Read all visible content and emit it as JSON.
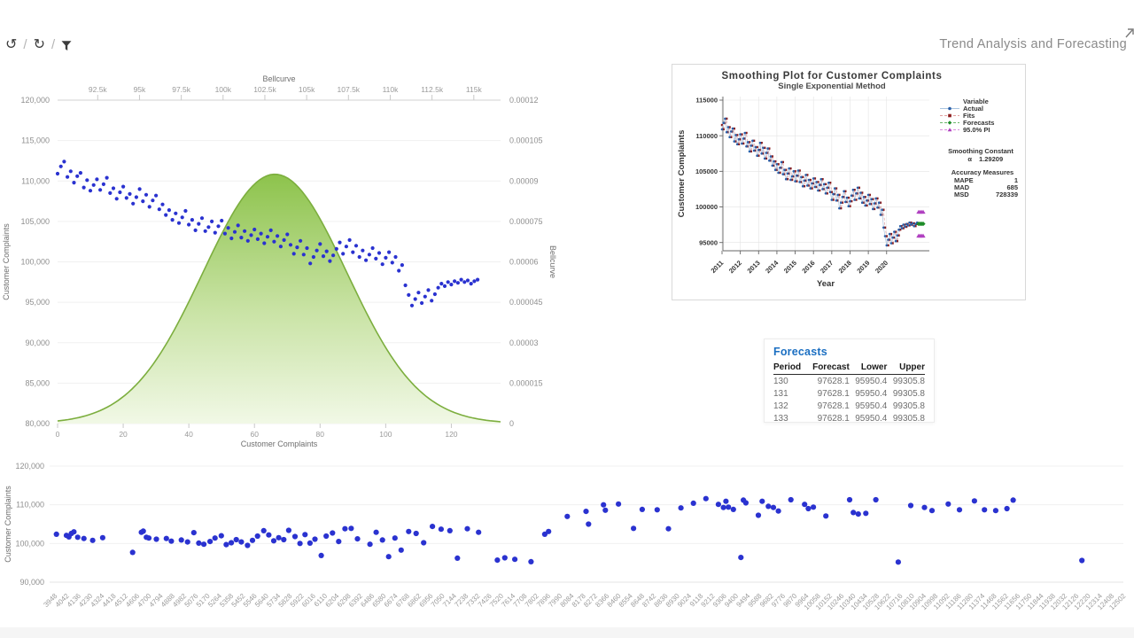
{
  "toolbar": {
    "icons": [
      {
        "name": "undo-history-icon",
        "glyph": "↺"
      },
      {
        "name": "refresh-icon",
        "glyph": "↻"
      },
      {
        "name": "filter-icon",
        "glyph": "funnel"
      }
    ],
    "separator": "/",
    "title": "Trend Analysis and Forecasting"
  },
  "colors": {
    "dot_blue": "#2a32d0",
    "bell_top": "#8dc34c",
    "bell_mid": "#c9e3a5",
    "bell_bottom": "#f1f8e6",
    "bell_stroke": "#7cae3e",
    "grid": "#f0f0f0",
    "grid_dark": "#e0e0e0",
    "axis_text": "#9a9a9a",
    "axis_title": "#6e6e6e",
    "actual_marker": "#2a5fa8",
    "actual_line": "#a8c4e0",
    "fits_marker": "#8c1c1c",
    "fits_line": "#e0a0a0",
    "forecast_marker": "#1e8c28",
    "forecast_line": "#6cb86c",
    "pi_marker": "#b040c0",
    "pi_line": "#d98ade",
    "minitab_text": "#3a3a3a"
  },
  "forecasts": {
    "title": "Forecasts",
    "columns": [
      "Period",
      "Forecast",
      "Lower",
      "Upper"
    ],
    "rows": [
      [
        "130",
        "97628.1",
        "95950.4",
        "99305.8"
      ],
      [
        "131",
        "97628.1",
        "95950.4",
        "99305.8"
      ],
      [
        "132",
        "97628.1",
        "95950.4",
        "99305.8"
      ],
      [
        "133",
        "97628.1",
        "95950.4",
        "99305.8"
      ]
    ]
  },
  "chart_data": [
    {
      "type": "scatter",
      "name": "bellcurve-overlay-chart",
      "top_axis": {
        "title": "Bellcurve",
        "ticks": [
          "92.5k",
          "95k",
          "97.5k",
          "100k",
          "102.5k",
          "105k",
          "107.5k",
          "110k",
          "112.5k",
          "115k"
        ],
        "tick_values": [
          92500,
          95000,
          97500,
          100000,
          102500,
          105000,
          107500,
          110000,
          112500,
          115000
        ],
        "min": 90100,
        "max": 116600
      },
      "left_axis": {
        "label": "Customer Complaints",
        "ticks": [
          "120,000",
          "115,000",
          "110,000",
          "105,000",
          "100,000",
          "95,000",
          "90,000",
          "85,000",
          "80,000"
        ],
        "tick_values": [
          120000,
          115000,
          110000,
          105000,
          100000,
          95000,
          90000,
          85000,
          80000
        ],
        "min": 80000,
        "max": 120000
      },
      "right_axis": {
        "label": "Bellcurve",
        "ticks": [
          "0.00012",
          "0.000105",
          "0.00009",
          "0.000075",
          "0.00006",
          "0.000045",
          "0.00003",
          "0.000015",
          "0"
        ],
        "tick_values": [
          0.00012,
          0.000105,
          9e-05,
          7.5e-05,
          6e-05,
          4.5e-05,
          3e-05,
          1.5e-05,
          0
        ],
        "min": 0,
        "max": 0.00012
      },
      "bottom_axis": {
        "label": "Customer Complaints",
        "ticks": [
          "0",
          "20",
          "40",
          "60",
          "80",
          "100",
          "120"
        ],
        "tick_values": [
          0,
          20,
          40,
          60,
          80,
          100,
          120
        ],
        "min": 0,
        "max": 135
      },
      "bellcurve": {
        "mean": 103100,
        "sd": 4300,
        "peak": 9.25e-05
      },
      "series_y": [
        110900,
        111800,
        112400,
        110500,
        111200,
        109800,
        110600,
        111000,
        109200,
        110100,
        108800,
        109500,
        110200,
        108900,
        109600,
        110400,
        108500,
        109100,
        107800,
        108600,
        109300,
        107900,
        108400,
        107200,
        108000,
        109000,
        107500,
        108300,
        106800,
        107600,
        108200,
        106500,
        107100,
        105800,
        106400,
        105200,
        106000,
        104800,
        105500,
        106300,
        104600,
        105200,
        103900,
        104700,
        105400,
        103800,
        104300,
        105000,
        103600,
        104400,
        105100,
        103500,
        104200,
        102900,
        103700,
        104500,
        103000,
        103800,
        102600,
        103300,
        104000,
        102800,
        103500,
        102300,
        103100,
        103900,
        102500,
        103200,
        101900,
        102700,
        103400,
        102100,
        101000,
        101800,
        102600,
        100900,
        101700,
        99800,
        100600,
        101400,
        102200,
        100700,
        101300,
        100100,
        100800,
        101600,
        102400,
        101000,
        101900,
        102700,
        101200,
        102000,
        100600,
        101400,
        100200,
        100900,
        101700,
        100400,
        101100,
        99700,
        100500,
        101200,
        99900,
        100600,
        98900,
        99600,
        97100,
        95900,
        94600,
        95400,
        96200,
        94900,
        95700,
        96500,
        95200,
        96000,
        96800,
        97300,
        97000,
        97500,
        97200,
        97600,
        97400,
        97800,
        97500,
        97700,
        97300,
        97600,
        97800
      ]
    },
    {
      "type": "line",
      "name": "smoothing-plot",
      "title": "Smoothing Plot for Customer Complaints",
      "subtitle": "Single Exponential Method",
      "xlabel": "Year",
      "ylabel": "Customer Complaints",
      "x_tick_labels": [
        "2011",
        "2012",
        "2013",
        "2014",
        "2015",
        "2016",
        "2017",
        "2018",
        "2019",
        "2020"
      ],
      "y_ticks": [
        "95000",
        "100000",
        "105000",
        "110000",
        "115000"
      ],
      "y_tick_values": [
        95000,
        100000,
        105000,
        110000,
        115000
      ],
      "legend": {
        "header": "Variable",
        "entries": [
          {
            "label": "Actual",
            "marker": "circle"
          },
          {
            "label": "Fits",
            "marker": "square"
          },
          {
            "label": "Forecasts",
            "marker": "diamond"
          },
          {
            "label": "95.0% PI",
            "marker": "triangle"
          }
        ]
      },
      "smoothing_constant": {
        "header": "Smoothing Constant",
        "alpha_symbol": "α",
        "alpha_value": "1.29209"
      },
      "accuracy": {
        "header": "Accuracy Measures",
        "rows": [
          [
            "MAPE",
            "1"
          ],
          [
            "MAD",
            "685"
          ],
          [
            "MSD",
            "728339"
          ]
        ]
      },
      "forecast_value": 97628.1,
      "pi_upper": 99305.8,
      "pi_lower": 95950.4,
      "forecast_periods": 4
    },
    {
      "type": "scatter",
      "name": "complaints-by-value-scatter",
      "ylabel": "Customer Complaints",
      "y_ticks": [
        "120,000",
        "110,000",
        "100,000",
        "90,000"
      ],
      "y_tick_values": [
        120000,
        110000,
        100000,
        90000
      ],
      "x_tick_labels": [
        "3948",
        "4042",
        "4136",
        "4230",
        "4324",
        "4418",
        "4512",
        "4606",
        "4700",
        "4794",
        "4888",
        "4982",
        "5076",
        "5170",
        "5264",
        "5358",
        "5452",
        "5546",
        "5640",
        "5734",
        "5828",
        "5922",
        "6016",
        "6110",
        "6204",
        "6298",
        "6392",
        "6486",
        "6580",
        "6674",
        "6768",
        "6862",
        "6956",
        "7050",
        "7144",
        "7238",
        "7332",
        "7426",
        "7520",
        "7614",
        "7708",
        "7802",
        "7896",
        "7990",
        "8084",
        "8178",
        "8272",
        "8366",
        "8460",
        "8554",
        "8648",
        "8742",
        "8836",
        "8930",
        "9024",
        "9118",
        "9212",
        "9306",
        "9400",
        "9494",
        "9588",
        "9682",
        "9776",
        "9870",
        "9964",
        "10058",
        "10152",
        "10246",
        "10340",
        "10434",
        "10528",
        "10622",
        "10716",
        "10810",
        "10904",
        "10998",
        "11092",
        "11186",
        "11280",
        "11374",
        "11468",
        "11562",
        "11656",
        "11750",
        "11844",
        "11938",
        "12032",
        "12126",
        "12220",
        "12314",
        "12408",
        "12502"
      ],
      "x_start": 3948,
      "x_step": 94,
      "points": [
        [
          3960,
          102400
        ],
        [
          4040,
          102100
        ],
        [
          4060,
          101700
        ],
        [
          4080,
          102600
        ],
        [
          4100,
          103000
        ],
        [
          4130,
          101600
        ],
        [
          4180,
          101300
        ],
        [
          4250,
          100800
        ],
        [
          4330,
          101500
        ],
        [
          4570,
          97700
        ],
        [
          4640,
          102900
        ],
        [
          4655,
          103200
        ],
        [
          4680,
          101600
        ],
        [
          4700,
          101400
        ],
        [
          4760,
          101100
        ],
        [
          4840,
          101300
        ],
        [
          4880,
          100600
        ],
        [
          4960,
          100900
        ],
        [
          5010,
          100400
        ],
        [
          5060,
          102800
        ],
        [
          5100,
          100100
        ],
        [
          5140,
          99800
        ],
        [
          5190,
          100500
        ],
        [
          5230,
          101400
        ],
        [
          5280,
          102000
        ],
        [
          5320,
          99700
        ],
        [
          5360,
          100200
        ],
        [
          5400,
          101000
        ],
        [
          5440,
          100400
        ],
        [
          5490,
          99500
        ],
        [
          5530,
          100800
        ],
        [
          5570,
          101900
        ],
        [
          5620,
          103300
        ],
        [
          5660,
          102200
        ],
        [
          5700,
          100700
        ],
        [
          5740,
          101500
        ],
        [
          5780,
          101000
        ],
        [
          5820,
          103400
        ],
        [
          5870,
          101800
        ],
        [
          5910,
          100000
        ],
        [
          5950,
          102300
        ],
        [
          5990,
          100100
        ],
        [
          6030,
          101100
        ],
        [
          6080,
          96900
        ],
        [
          6120,
          101900
        ],
        [
          6170,
          102700
        ],
        [
          6220,
          100500
        ],
        [
          6270,
          103800
        ],
        [
          6320,
          103900
        ],
        [
          6370,
          101200
        ],
        [
          6470,
          99800
        ],
        [
          6520,
          102900
        ],
        [
          6570,
          100900
        ],
        [
          6620,
          96600
        ],
        [
          6670,
          101400
        ],
        [
          6720,
          98300
        ],
        [
          6780,
          103100
        ],
        [
          6840,
          102600
        ],
        [
          6900,
          100200
        ],
        [
          6970,
          104400
        ],
        [
          7040,
          103700
        ],
        [
          7110,
          103300
        ],
        [
          7170,
          96200
        ],
        [
          7250,
          103800
        ],
        [
          7340,
          102900
        ],
        [
          7490,
          95700
        ],
        [
          7550,
          96300
        ],
        [
          7630,
          95900
        ],
        [
          7760,
          95300
        ],
        [
          7870,
          102400
        ],
        [
          7900,
          103100
        ],
        [
          8050,
          107000
        ],
        [
          8200,
          108300
        ],
        [
          8220,
          105000
        ],
        [
          8340,
          110000
        ],
        [
          8355,
          108600
        ],
        [
          8460,
          110200
        ],
        [
          8580,
          103900
        ],
        [
          8650,
          108800
        ],
        [
          8770,
          108700
        ],
        [
          8860,
          103800
        ],
        [
          8960,
          109200
        ],
        [
          9060,
          110400
        ],
        [
          9160,
          111600
        ],
        [
          9260,
          110100
        ],
        [
          9300,
          109300
        ],
        [
          9320,
          110900
        ],
        [
          9340,
          109400
        ],
        [
          9380,
          108800
        ],
        [
          9440,
          96400
        ],
        [
          9460,
          111200
        ],
        [
          9480,
          110500
        ],
        [
          9580,
          107300
        ],
        [
          9610,
          110900
        ],
        [
          9660,
          109600
        ],
        [
          9700,
          109300
        ],
        [
          9740,
          108400
        ],
        [
          9840,
          111300
        ],
        [
          9950,
          110100
        ],
        [
          9980,
          109000
        ],
        [
          10020,
          109400
        ],
        [
          10120,
          107100
        ],
        [
          10310,
          111300
        ],
        [
          10340,
          108000
        ],
        [
          10380,
          107600
        ],
        [
          10440,
          107800
        ],
        [
          10520,
          111300
        ],
        [
          10700,
          95200
        ],
        [
          10800,
          109800
        ],
        [
          10910,
          109300
        ],
        [
          10970,
          108500
        ],
        [
          11100,
          110200
        ],
        [
          11190,
          108700
        ],
        [
          11310,
          111000
        ],
        [
          11390,
          108700
        ],
        [
          11480,
          108500
        ],
        [
          11570,
          109000
        ],
        [
          11620,
          111200
        ],
        [
          12170,
          95600
        ],
        [
          12620,
          95300
        ]
      ]
    }
  ]
}
